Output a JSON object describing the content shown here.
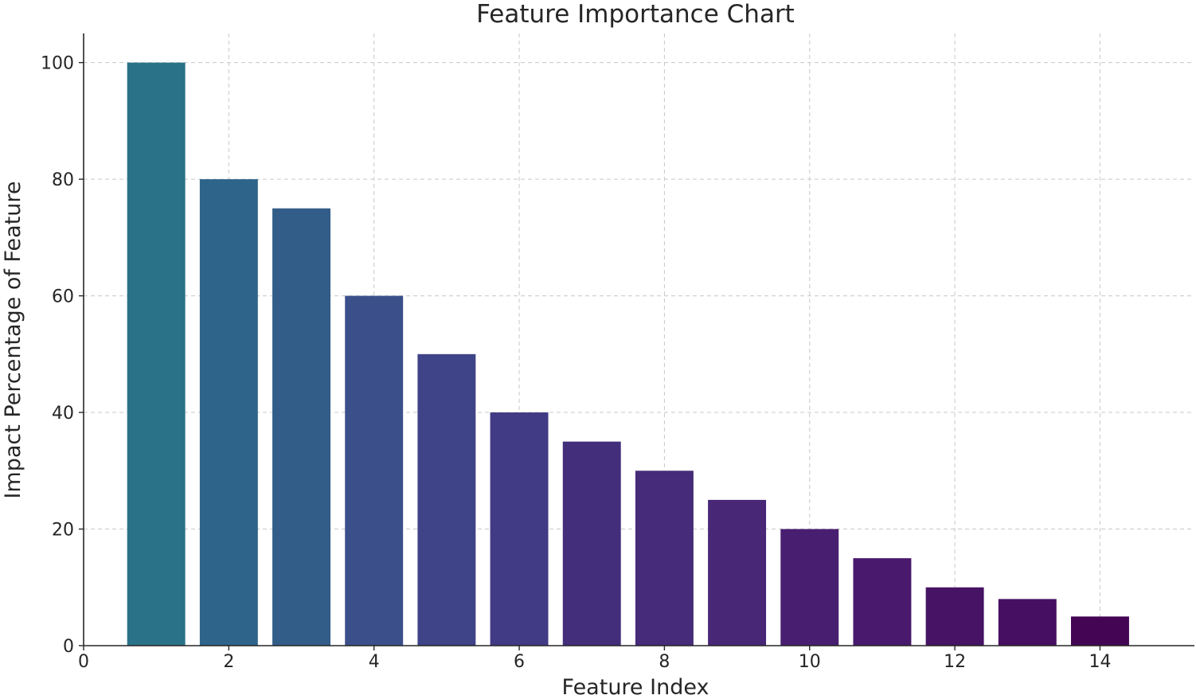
{
  "chart_data": {
    "type": "bar",
    "title": "Feature Importance Chart",
    "xlabel": "Feature Index",
    "ylabel": "Impact Percentage of Feature",
    "x": [
      1,
      2,
      3,
      4,
      5,
      6,
      7,
      8,
      9,
      10,
      11,
      12,
      13,
      14
    ],
    "values": [
      100,
      80,
      75,
      60,
      50,
      40,
      35,
      30,
      25,
      20,
      15,
      10,
      8,
      5
    ],
    "xlim": [
      0,
      15.3
    ],
    "ylim": [
      0,
      105
    ],
    "xticks": [
      "0",
      "2",
      "4",
      "6",
      "8",
      "10",
      "12",
      "14"
    ],
    "yticks": [
      "0",
      "20",
      "40",
      "60",
      "80",
      "100"
    ],
    "grid": true,
    "legend": "none",
    "colors": [
      "#2a7287",
      "#2e6489",
      "#335d89",
      "#3b4f8a",
      "#3f4387",
      "#413a84",
      "#432e7c",
      "#452b79",
      "#472776",
      "#481e70",
      "#48196c",
      "#461365",
      "#460f62",
      "#440554"
    ]
  }
}
